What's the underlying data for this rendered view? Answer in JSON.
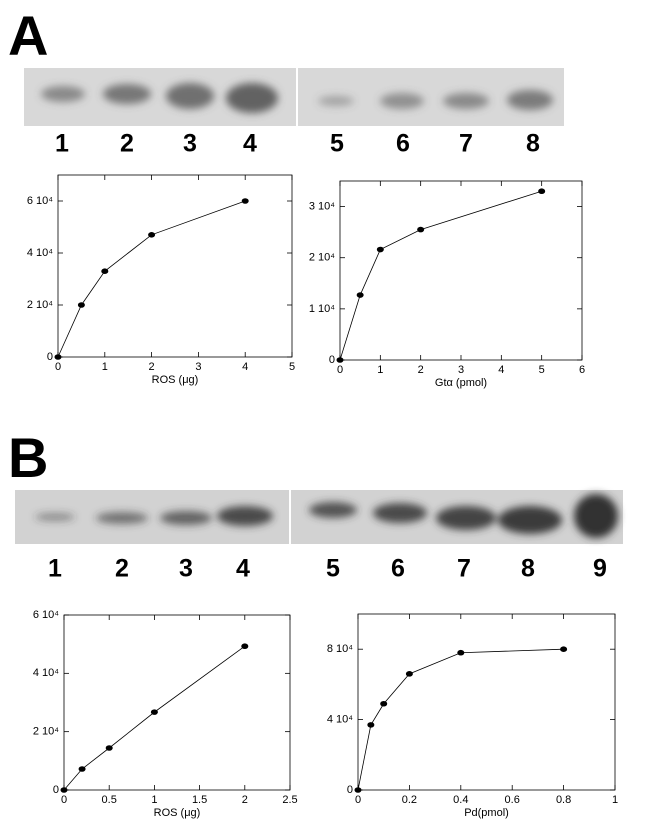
{
  "panels": [
    {
      "label": "A",
      "lanes": [
        "1",
        "2",
        "3",
        "4",
        "5",
        "6",
        "7",
        "8"
      ]
    },
    {
      "label": "B",
      "lanes": [
        "1",
        "2",
        "3",
        "4",
        "5",
        "6",
        "7",
        "8",
        "9"
      ]
    }
  ],
  "chart_data": [
    {
      "type": "line",
      "xlabel": "ROS (μg)",
      "x": [
        0,
        0.5,
        1,
        2,
        4
      ],
      "values": [
        0,
        20000,
        33000,
        47000,
        60000
      ],
      "color": "#000000",
      "xlim": [
        0,
        5
      ],
      "xticks": [
        0,
        1,
        2,
        3,
        4,
        5
      ],
      "ylim": [
        0,
        70000
      ],
      "yticks": [
        0,
        {
          "value": 20000,
          "label": "2 10⁴"
        },
        {
          "value": 40000,
          "label": "4 10⁴"
        },
        {
          "value": 60000,
          "label": "6 10⁴"
        }
      ]
    },
    {
      "type": "line",
      "xlabel": "Gtα (pmol)",
      "x": [
        0,
        0.5,
        1,
        2,
        5
      ],
      "values": [
        0,
        12700,
        21600,
        25500,
        33000
      ],
      "color": "#000000",
      "xlim": [
        0,
        6
      ],
      "xticks": [
        0,
        1,
        2,
        3,
        4,
        5,
        6
      ],
      "ylim": [
        0,
        35000
      ],
      "yticks": [
        0,
        {
          "value": 10000,
          "label": "1 10⁴"
        },
        {
          "value": 20000,
          "label": "2 10⁴"
        },
        {
          "value": 30000,
          "label": "3 10⁴"
        }
      ]
    },
    {
      "type": "line",
      "xlabel": "ROS (μg)",
      "x": [
        0,
        0.2,
        0.5,
        1,
        2
      ],
      "values": [
        0,
        7200,
        14400,
        26700,
        49300
      ],
      "color": "#000000",
      "xlim": [
        0,
        2.5
      ],
      "xticks": [
        0,
        0.5,
        1,
        1.5,
        2,
        2.5
      ],
      "ylim": [
        0,
        60000
      ],
      "yticks": [
        0,
        {
          "value": 20000,
          "label": "2 10⁴"
        },
        {
          "value": 40000,
          "label": "4 10⁴"
        },
        {
          "value": 60000,
          "label": "6 10⁴"
        }
      ]
    },
    {
      "type": "line",
      "xlabel": "Pd(pmol)",
      "x": [
        0,
        0.05,
        0.1,
        0.2,
        0.4,
        0.8
      ],
      "values": [
        0,
        37000,
        49000,
        66000,
        78000,
        80000
      ],
      "color": "#000000",
      "xlim": [
        0,
        1
      ],
      "xticks": [
        0,
        0.2,
        0.4,
        0.6,
        0.8,
        1
      ],
      "ylim": [
        0,
        100000
      ],
      "yticks": [
        0,
        {
          "value": 40000,
          "label": "4 10⁴"
        },
        {
          "value": 80000,
          "label": "8 10⁴"
        }
      ]
    }
  ]
}
